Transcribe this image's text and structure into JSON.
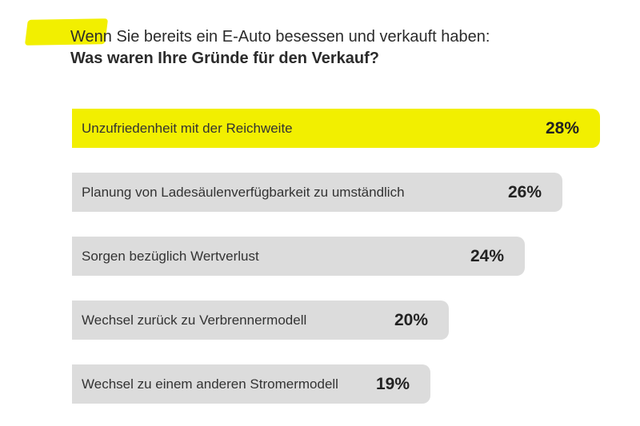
{
  "header": {
    "title": "Wenn Sie bereits ein E-Auto besessen und verkauft haben:",
    "subtitle": "Was waren Ihre Gründe für den Verkauf?"
  },
  "colors": {
    "highlight": "#f2ef00",
    "bar": "#dcdcdc"
  },
  "chart_data": {
    "type": "bar",
    "orientation": "horizontal",
    "title": "Wenn Sie bereits ein E-Auto besessen und verkauft haben:",
    "subtitle": "Was waren Ihre Gründe für den Verkauf?",
    "categories": [
      "Unzufriedenheit mit der Reichweite",
      "Planung von Ladesäulenverfügbarkeit zu umständlich",
      "Sorgen bezüglich Wertverlust",
      "Wechsel zurück zu Verbrennermodell",
      "Wechsel zu einem anderen Stromermodell"
    ],
    "values": [
      28,
      26,
      24,
      20,
      19
    ],
    "value_labels": [
      "28%",
      "26%",
      "24%",
      "20%",
      "19%"
    ],
    "highlighted_index": 0,
    "xlim": [
      0,
      100
    ],
    "grid": false
  }
}
